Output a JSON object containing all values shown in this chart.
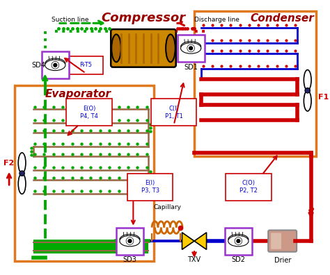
{
  "bg_color": "#ffffff",
  "title": "Compressor",
  "title_color": "#cc0000",
  "condenser_label": "Condenser",
  "evaporator_label": "Evaporator",
  "suction_label": "Suction line",
  "discharge_label": "Discharge line",
  "capillary_label": "Capillary",
  "drier_label": "Drier",
  "f1_label": "F1",
  "f2_label": "F2",
  "orange_border": "#e07820",
  "blue_color": "#0000cc",
  "red_color": "#cc0000",
  "green_color": "#00aa00",
  "purple_color": "#9933cc",
  "dark_red": "#990000",
  "gold_color": "#cc8800",
  "gold_dark": "#aa6600"
}
